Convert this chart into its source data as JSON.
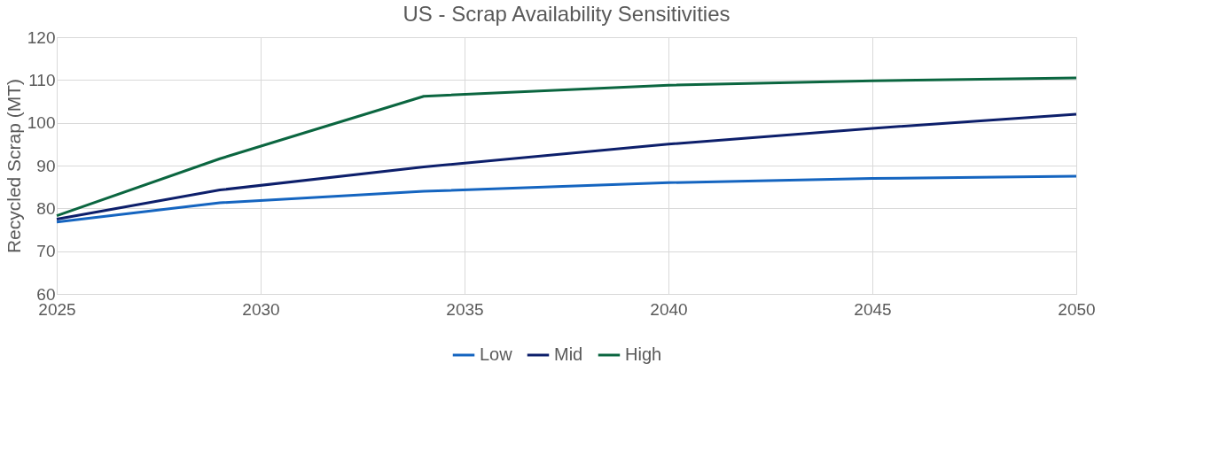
{
  "chart_data": {
    "type": "line",
    "title": "US - Scrap Availability Sensitivities",
    "ylabel": "Recycled Scrap (MT)",
    "x": [
      2025,
      2029,
      2034,
      2040,
      2045,
      2050
    ],
    "series": [
      {
        "name": "Low",
        "color": "#1565c0",
        "values": [
          76.8,
          81.3,
          84.0,
          86.0,
          87.0,
          87.5
        ]
      },
      {
        "name": "Mid",
        "color": "#0d1f6b",
        "values": [
          77.5,
          84.3,
          89.7,
          95.0,
          98.7,
          102.0
        ]
      },
      {
        "name": "High",
        "color": "#0b6640",
        "values": [
          78.3,
          91.6,
          106.2,
          108.8,
          109.8,
          110.5
        ]
      }
    ],
    "xlim": [
      2025,
      2050
    ],
    "xticks": [
      2025,
      2030,
      2035,
      2040,
      2045,
      2050
    ],
    "ylim": [
      60,
      120
    ],
    "yticks": [
      60,
      70,
      80,
      90,
      100,
      110,
      120
    ],
    "grid": true,
    "legend": "bottom",
    "marker": "none",
    "line_style": "solid"
  }
}
